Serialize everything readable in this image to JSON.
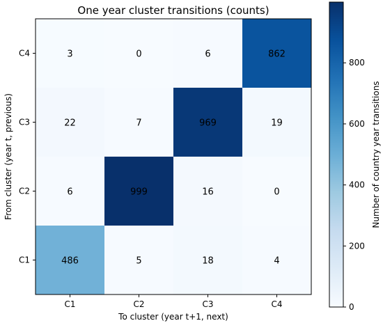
{
  "chart_data": {
    "type": "heatmap",
    "title": "One year cluster transitions (counts)",
    "xlabel": "To cluster (year t+1, next)",
    "ylabel": "From cluster (year t, previous)",
    "x_categories": [
      "C1",
      "C2",
      "C3",
      "C4"
    ],
    "y_categories": [
      "C4",
      "C3",
      "C2",
      "C1"
    ],
    "values": [
      [
        3,
        0,
        6,
        862
      ],
      [
        22,
        7,
        969,
        19
      ],
      [
        6,
        999,
        16,
        0
      ],
      [
        486,
        5,
        18,
        4
      ]
    ],
    "colorbar": {
      "label": "Number of country year transitions",
      "range": [
        0,
        999
      ],
      "ticks": [
        0,
        200,
        400,
        600,
        800
      ],
      "colormap": "Blues",
      "colors": [
        "#f7fbff",
        "#deebf7",
        "#c6dbef",
        "#9ecae1",
        "#6baed6",
        "#4292c6",
        "#2171b5",
        "#08519c",
        "#08306b"
      ]
    },
    "grid": false,
    "legend": "none"
  }
}
